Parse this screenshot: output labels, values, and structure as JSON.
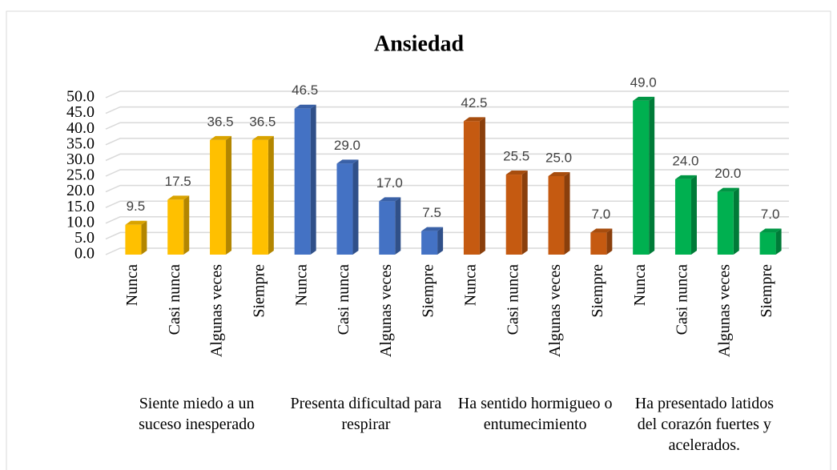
{
  "chart_data": {
    "type": "bar3d",
    "title": "Ansiedad",
    "ylim": [
      0,
      50
    ],
    "yticks": [
      {
        "value": 0,
        "label": "0.0"
      },
      {
        "value": 5,
        "label": "5.0"
      },
      {
        "value": 10,
        "label": "10.0"
      },
      {
        "value": 15,
        "label": "15.0"
      },
      {
        "value": 20,
        "label": "20.0"
      },
      {
        "value": 25,
        "label": "25.0"
      },
      {
        "value": 30,
        "label": "30.0"
      },
      {
        "value": 35,
        "label": "35.0"
      },
      {
        "value": 40,
        "label": "40.0"
      },
      {
        "value": 45,
        "label": "45.0"
      },
      {
        "value": 50,
        "label": "50.0"
      }
    ],
    "grid": true,
    "series": [
      {
        "name": "Siente miedo a un suceso inesperado",
        "color": "#ffc000",
        "categories": [
          "Nunca",
          "Casi nunca",
          "Algunas veces",
          "Siempre"
        ],
        "values": [
          9.5,
          17.5,
          36.5,
          36.5
        ],
        "value_labels": [
          "9.5",
          "17.5",
          "36.5",
          "36.5"
        ]
      },
      {
        "name": "Presenta dificultad para respirar",
        "color": "#4472c4",
        "categories": [
          "Nunca",
          "Casi nunca",
          "Algunas veces",
          "Siempre"
        ],
        "values": [
          46.5,
          29,
          17,
          7.5
        ],
        "value_labels": [
          "46.5",
          "29.0",
          "17.0",
          "7.5"
        ]
      },
      {
        "name": "Ha sentido hormigueo o entumecimiento",
        "color": "#c55a11",
        "categories": [
          "Nunca",
          "Casi nunca",
          "Algunas veces",
          "Siempre"
        ],
        "values": [
          42.5,
          25.5,
          25,
          7
        ],
        "value_labels": [
          "42.5",
          "25.5",
          "25.0",
          "7.0"
        ]
      },
      {
        "name": "Ha presentado latidos del corazón fuertes y acelerados.",
        "color": "#00b050",
        "categories": [
          "Nunca",
          "Casi nunca",
          "Algunas veces",
          "Siempre"
        ],
        "values": [
          49,
          24,
          20,
          7
        ],
        "value_labels": [
          "49.0",
          "24.0",
          "20.0",
          "7.0"
        ]
      }
    ]
  }
}
